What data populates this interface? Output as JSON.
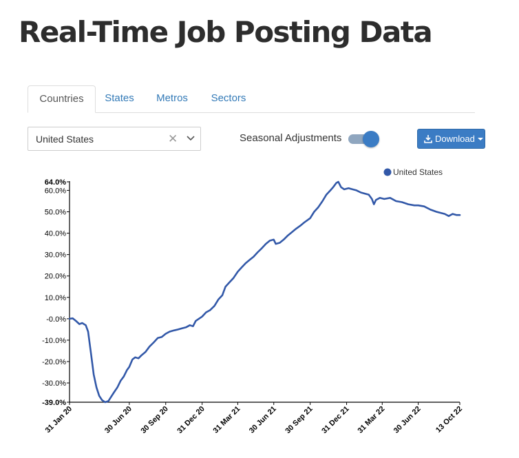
{
  "page": {
    "title": "Real-Time Job Posting Data"
  },
  "tabs": [
    {
      "label": "Countries",
      "active": true
    },
    {
      "label": "States",
      "active": false
    },
    {
      "label": "Metros",
      "active": false
    },
    {
      "label": "Sectors",
      "active": false
    }
  ],
  "controls": {
    "country_select": {
      "value": "United States",
      "clear_icon": "close-icon",
      "dropdown_icon": "chevron-down-icon"
    },
    "seasonal_adjustments": {
      "label": "Seasonal Adjustments",
      "on": true
    },
    "download": {
      "label": "Download",
      "icon": "download-icon",
      "caret_icon": "caret-down-icon"
    }
  },
  "colors": {
    "accent": "#3b7cc4",
    "series_line": "#3258a8",
    "link": "#337ab7",
    "toggle_track": "#8fa6bf"
  },
  "chart_data": {
    "type": "line",
    "title": "",
    "xlabel": "",
    "ylabel": "",
    "legend": {
      "placement": "top-right",
      "entries": [
        "United States"
      ]
    },
    "ylim": [
      -39.0,
      64.0
    ],
    "xlim": [
      "2020-01-31",
      "2022-10-13"
    ],
    "y_ticks": [
      {
        "value": 64.0,
        "label": "64.0%",
        "bold": true
      },
      {
        "value": 60.0,
        "label": "60.0%",
        "bold": false
      },
      {
        "value": 50.0,
        "label": "50.0%",
        "bold": false
      },
      {
        "value": 40.0,
        "label": "40.0%",
        "bold": false
      },
      {
        "value": 30.0,
        "label": "30.0%",
        "bold": false
      },
      {
        "value": 20.0,
        "label": "20.0%",
        "bold": false
      },
      {
        "value": 10.0,
        "label": "10.0%",
        "bold": false
      },
      {
        "value": 0.0,
        "label": "-0.0%",
        "bold": false
      },
      {
        "value": -10.0,
        "label": "-10.0%",
        "bold": false
      },
      {
        "value": -20.0,
        "label": "-20.0%",
        "bold": false
      },
      {
        "value": -30.0,
        "label": "-30.0%",
        "bold": false
      },
      {
        "value": -39.0,
        "label": "-39.0%",
        "bold": true
      }
    ],
    "x_ticks": [
      {
        "date": "2020-01-31",
        "label": "31 Jan 20"
      },
      {
        "date": "2020-06-30",
        "label": "30 Jun 20"
      },
      {
        "date": "2020-09-30",
        "label": "30 Sep 20"
      },
      {
        "date": "2020-12-31",
        "label": "31 Dec 20"
      },
      {
        "date": "2021-03-31",
        "label": "31 Mar 21"
      },
      {
        "date": "2021-06-30",
        "label": "30 Jun 21"
      },
      {
        "date": "2021-09-30",
        "label": "30 Sep 21"
      },
      {
        "date": "2021-12-31",
        "label": "31 Dec 21"
      },
      {
        "date": "2022-03-31",
        "label": "31 Mar 22"
      },
      {
        "date": "2022-06-30",
        "label": "30 Jun 22"
      },
      {
        "date": "2022-10-13",
        "label": "13 Oct 22"
      }
    ],
    "series": [
      {
        "name": "United States",
        "points": [
          [
            "2020-01-31",
            0.0
          ],
          [
            "2020-02-08",
            0.2
          ],
          [
            "2020-02-16",
            -1.0
          ],
          [
            "2020-02-25",
            -2.5
          ],
          [
            "2020-03-03",
            -2.0
          ],
          [
            "2020-03-12",
            -3.0
          ],
          [
            "2020-03-18",
            -6.0
          ],
          [
            "2020-03-25",
            -16.0
          ],
          [
            "2020-04-01",
            -26.0
          ],
          [
            "2020-04-08",
            -32.0
          ],
          [
            "2020-04-15",
            -36.0
          ],
          [
            "2020-04-22",
            -38.0
          ],
          [
            "2020-04-30",
            -39.0
          ],
          [
            "2020-05-08",
            -38.5
          ],
          [
            "2020-05-15",
            -36.5
          ],
          [
            "2020-05-22",
            -34.5
          ],
          [
            "2020-05-31",
            -32.0
          ],
          [
            "2020-06-08",
            -29.0
          ],
          [
            "2020-06-16",
            -27.0
          ],
          [
            "2020-06-24",
            -24.0
          ],
          [
            "2020-06-30",
            -22.5
          ],
          [
            "2020-07-08",
            -19.0
          ],
          [
            "2020-07-15",
            -18.0
          ],
          [
            "2020-07-23",
            -18.5
          ],
          [
            "2020-07-31",
            -17.0
          ],
          [
            "2020-08-10",
            -15.5
          ],
          [
            "2020-08-20",
            -13.0
          ],
          [
            "2020-08-31",
            -11.0
          ],
          [
            "2020-09-10",
            -9.0
          ],
          [
            "2020-09-20",
            -8.5
          ],
          [
            "2020-09-30",
            -7.0
          ],
          [
            "2020-10-10",
            -6.0
          ],
          [
            "2020-10-20",
            -5.5
          ],
          [
            "2020-10-31",
            -5.0
          ],
          [
            "2020-11-10",
            -4.5
          ],
          [
            "2020-11-20",
            -4.0
          ],
          [
            "2020-11-30",
            -3.0
          ],
          [
            "2020-12-08",
            -3.5
          ],
          [
            "2020-12-15",
            -1.0
          ],
          [
            "2020-12-23",
            0.0
          ],
          [
            "2020-12-31",
            1.0
          ],
          [
            "2021-01-10",
            3.0
          ],
          [
            "2021-01-20",
            4.0
          ],
          [
            "2021-01-31",
            6.0
          ],
          [
            "2021-02-10",
            9.0
          ],
          [
            "2021-02-20",
            11.0
          ],
          [
            "2021-02-28",
            15.0
          ],
          [
            "2021-03-10",
            17.0
          ],
          [
            "2021-03-20",
            19.0
          ],
          [
            "2021-03-31",
            22.0
          ],
          [
            "2021-04-10",
            24.0
          ],
          [
            "2021-04-20",
            26.0
          ],
          [
            "2021-04-30",
            27.5
          ],
          [
            "2021-05-10",
            29.0
          ],
          [
            "2021-05-20",
            31.0
          ],
          [
            "2021-05-31",
            33.0
          ],
          [
            "2021-06-10",
            35.0
          ],
          [
            "2021-06-20",
            36.5
          ],
          [
            "2021-06-30",
            37.0
          ],
          [
            "2021-07-05",
            35.0
          ],
          [
            "2021-07-15",
            35.5
          ],
          [
            "2021-07-25",
            37.0
          ],
          [
            "2021-08-05",
            39.0
          ],
          [
            "2021-08-15",
            40.5
          ],
          [
            "2021-08-25",
            42.0
          ],
          [
            "2021-09-05",
            43.5
          ],
          [
            "2021-09-15",
            45.0
          ],
          [
            "2021-09-30",
            47.0
          ],
          [
            "2021-10-10",
            50.0
          ],
          [
            "2021-10-20",
            52.0
          ],
          [
            "2021-10-31",
            55.0
          ],
          [
            "2021-11-10",
            58.0
          ],
          [
            "2021-11-20",
            60.0
          ],
          [
            "2021-11-27",
            61.5
          ],
          [
            "2021-12-05",
            63.5
          ],
          [
            "2021-12-10",
            64.0
          ],
          [
            "2021-12-17",
            61.5
          ],
          [
            "2021-12-25",
            60.5
          ],
          [
            "2022-01-05",
            61.0
          ],
          [
            "2022-01-15",
            60.5
          ],
          [
            "2022-01-25",
            60.0
          ],
          [
            "2022-02-05",
            59.0
          ],
          [
            "2022-02-15",
            58.5
          ],
          [
            "2022-02-25",
            58.0
          ],
          [
            "2022-03-05",
            56.0
          ],
          [
            "2022-03-10",
            53.5
          ],
          [
            "2022-03-15",
            55.5
          ],
          [
            "2022-03-25",
            56.5
          ],
          [
            "2022-04-05",
            56.0
          ],
          [
            "2022-04-20",
            56.5
          ],
          [
            "2022-05-05",
            55.0
          ],
          [
            "2022-05-20",
            54.5
          ],
          [
            "2022-06-05",
            53.5
          ],
          [
            "2022-06-20",
            53.0
          ],
          [
            "2022-06-30",
            53.0
          ],
          [
            "2022-07-15",
            52.5
          ],
          [
            "2022-07-31",
            51.0
          ],
          [
            "2022-08-15",
            50.0
          ],
          [
            "2022-08-25",
            49.5
          ],
          [
            "2022-09-05",
            49.0
          ],
          [
            "2022-09-15",
            48.0
          ],
          [
            "2022-09-25",
            49.0
          ],
          [
            "2022-10-05",
            48.5
          ],
          [
            "2022-10-13",
            48.5
          ]
        ]
      }
    ]
  }
}
